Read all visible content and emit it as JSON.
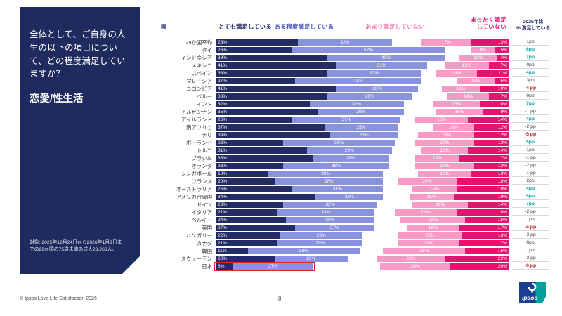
{
  "sidebar": {
    "question": "全体として、ご自身の人生の以下の項目について、どの程度満足していますか？",
    "topic": "恋愛/性生活",
    "note": "対象: 2025年12月24日から2026年1月9日までの29か国の75歳未満の成人23,268人。"
  },
  "footer": {
    "copyright": "© Ipsos Love Life Satisfaction 2026",
    "page_number": "8",
    "logo_text": "Ipsos"
  },
  "chart_data": {
    "type": "bar",
    "variant": "horizontal-stacked-diverging",
    "xlim": [
      0,
      100
    ],
    "unit": "%",
    "country_header": "国",
    "change_header": "2025年比\n% 満足している",
    "legend": [
      {
        "label": "とても満足している",
        "color": "#232d64"
      },
      {
        "label": "ある程度満足している",
        "color": "#8992dd"
      },
      {
        "label": "あまり満足していない",
        "color": "#f79ac6"
      },
      {
        "label": "まったく満足\nしていない",
        "color": "#e3146f"
      }
    ],
    "change_colors": {
      "up": "#00a2a0",
      "down": "#c1121f",
      "neutral": "#3a3b47"
    },
    "highlight_box_color": "#e0262c",
    "rows": [
      {
        "country": "29か国平均",
        "values": [
          28,
          32,
          17,
          13
        ],
        "change": "1pp",
        "change_type": "neutral",
        "highlight": false
      },
      {
        "country": "タイ",
        "values": [
          26,
          52,
          8,
          5
        ],
        "change": "6pp",
        "change_type": "up",
        "highlight": false
      },
      {
        "country": "インドネシア",
        "values": [
          38,
          40,
          13,
          4
        ],
        "change": "7pp",
        "change_type": "up",
        "highlight": false
      },
      {
        "country": "メキシコ",
        "values": [
          41,
          31,
          15,
          7
        ],
        "change": "0pp",
        "change_type": "neutral",
        "highlight": false
      },
      {
        "country": "スペイン",
        "values": [
          38,
          32,
          14,
          11
        ],
        "change": "4pp",
        "change_type": "up",
        "highlight": false
      },
      {
        "country": "マレーシア",
        "values": [
          27,
          43,
          13,
          5
        ],
        "change": "3pp",
        "change_type": "neutral",
        "highlight": false
      },
      {
        "country": "コロンビア",
        "values": [
          41,
          28,
          13,
          10
        ],
        "change": "-4 pp",
        "change_type": "down",
        "highlight": false
      },
      {
        "country": "ペルー",
        "values": [
          38,
          29,
          14,
          7
        ],
        "change": "0pp",
        "change_type": "neutral",
        "highlight": false
      },
      {
        "country": "インド",
        "values": [
          32,
          32,
          16,
          10
        ],
        "change": "7pp",
        "change_type": "up",
        "highlight": false
      },
      {
        "country": "アルゼンチン",
        "values": [
          35,
          29,
          16,
          9
        ],
        "change": "-1 pp",
        "change_type": "neutral",
        "highlight": false
      },
      {
        "country": "アイルランド",
        "values": [
          26,
          37,
          18,
          14
        ],
        "change": "4pp",
        "change_type": "up",
        "highlight": false
      },
      {
        "country": "南アフリカ",
        "values": [
          37,
          25,
          14,
          12
        ],
        "change": "-2 pp",
        "change_type": "neutral",
        "highlight": false
      },
      {
        "country": "チリ",
        "values": [
          39,
          23,
          19,
          12
        ],
        "change": "-5 pp",
        "change_type": "down",
        "highlight": false
      },
      {
        "country": "ポーランド",
        "values": [
          23,
          38,
          20,
          12
        ],
        "change": "5pp",
        "change_type": "up",
        "highlight": false
      },
      {
        "country": "トルコ",
        "values": [
          31,
          29,
          16,
          14
        ],
        "change": "1pp",
        "change_type": "neutral",
        "highlight": false
      },
      {
        "country": "ブラジル",
        "values": [
          33,
          26,
          15,
          17
        ],
        "change": "-1 pp",
        "change_type": "neutral",
        "highlight": false
      },
      {
        "country": "オランダ",
        "values": [
          23,
          36,
          20,
          12
        ],
        "change": "-2 pp",
        "change_type": "neutral",
        "highlight": false
      },
      {
        "country": "シンガポール",
        "values": [
          18,
          39,
          18,
          13
        ],
        "change": "-1 pp",
        "change_type": "neutral",
        "highlight": false
      },
      {
        "country": "フランス",
        "values": [
          20,
          37,
          20,
          18
        ],
        "change": "2pp",
        "change_type": "neutral",
        "highlight": false
      },
      {
        "country": "オーストラリア",
        "values": [
          26,
          31,
          15,
          18
        ],
        "change": "4pp",
        "change_type": "up",
        "highlight": false
      },
      {
        "country": "アメリカ合衆国",
        "values": [
          34,
          23,
          15,
          19
        ],
        "change": "5pp",
        "change_type": "up",
        "highlight": false
      },
      {
        "country": "ドイツ",
        "values": [
          23,
          32,
          19,
          14
        ],
        "change": "7pp",
        "change_type": "up",
        "highlight": false
      },
      {
        "country": "イタリア",
        "values": [
          21,
          33,
          21,
          18
        ],
        "change": "-2 pp",
        "change_type": "neutral",
        "highlight": false
      },
      {
        "country": "ベルギー",
        "values": [
          24,
          30,
          22,
          15
        ],
        "change": "1pp",
        "change_type": "neutral",
        "highlight": false
      },
      {
        "country": "英国",
        "values": [
          27,
          27,
          18,
          17
        ],
        "change": "-4 pp",
        "change_type": "down",
        "highlight": false
      },
      {
        "country": "ハンガリー",
        "values": [
          22,
          28,
          22,
          16
        ],
        "change": "-3 pp",
        "change_type": "neutral",
        "highlight": false
      },
      {
        "country": "カナダ",
        "values": [
          21,
          29,
          21,
          17
        ],
        "change": "0pp",
        "change_type": "neutral",
        "highlight": false
      },
      {
        "country": "韓国",
        "values": [
          11,
          38,
          28,
          15
        ],
        "change": "1pp",
        "change_type": "neutral",
        "highlight": false
      },
      {
        "country": "スウェーデン",
        "values": [
          20,
          25,
          23,
          22
        ],
        "change": "-3 pp",
        "change_type": "neutral",
        "highlight": false
      },
      {
        "country": "日本",
        "values": [
          6,
          27,
          24,
          20
        ],
        "change": "-6 pp",
        "change_type": "down",
        "highlight": true
      }
    ]
  }
}
